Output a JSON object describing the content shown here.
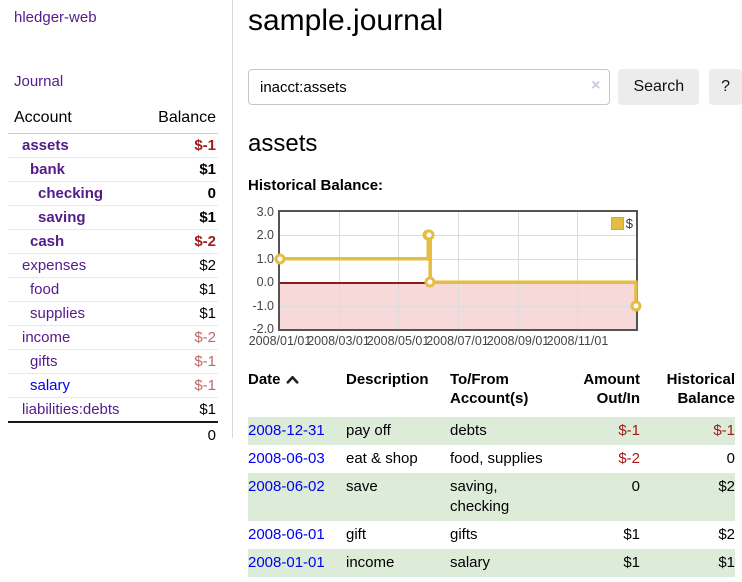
{
  "app": {
    "brand": "hledger-web"
  },
  "sidebar": {
    "nav": {
      "journal": "Journal"
    },
    "columns": {
      "account": "Account",
      "balance": "Balance"
    },
    "accounts": [
      {
        "name": "assets",
        "indent": 0,
        "bold": true,
        "link_color": "purple",
        "balance": "$-1",
        "balance_class": "neg"
      },
      {
        "name": "bank",
        "indent": 1,
        "bold": true,
        "link_color": "purple",
        "balance": "$1",
        "balance_class": "pos"
      },
      {
        "name": "checking",
        "indent": 2,
        "bold": true,
        "link_color": "purple",
        "balance": "0",
        "balance_class": "pos"
      },
      {
        "name": "saving",
        "indent": 2,
        "bold": true,
        "link_color": "purple",
        "balance": "$1",
        "balance_class": "pos"
      },
      {
        "name": "cash",
        "indent": 1,
        "bold": true,
        "link_color": "purple",
        "balance": "$-2",
        "balance_class": "neg"
      },
      {
        "name": "expenses",
        "indent": 0,
        "bold": false,
        "link_color": "purple",
        "balance": "$2",
        "balance_class": "pos"
      },
      {
        "name": "food",
        "indent": 1,
        "bold": false,
        "link_color": "purple",
        "balance": "$1",
        "balance_class": "pos"
      },
      {
        "name": "supplies",
        "indent": 1,
        "bold": false,
        "link_color": "purple",
        "balance": "$1",
        "balance_class": "pos"
      },
      {
        "name": "income",
        "indent": 0,
        "bold": false,
        "link_color": "purple",
        "balance": "$-2",
        "balance_class": "negsoft"
      },
      {
        "name": "gifts",
        "indent": 1,
        "bold": false,
        "link_color": "purple",
        "balance": "$-1",
        "balance_class": "negsoft"
      },
      {
        "name": "salary",
        "indent": 1,
        "bold": false,
        "link_color": "blue",
        "balance": "$-1",
        "balance_class": "negsoft"
      },
      {
        "name": "liabilities:debts",
        "indent": 0,
        "bold": false,
        "link_color": "purple",
        "balance": "$1",
        "balance_class": "pos"
      }
    ],
    "total": "0"
  },
  "header": {
    "title": "sample.journal"
  },
  "search": {
    "value": "inacct:assets",
    "clear_icon": "×",
    "button_label": "Search",
    "help_label": "?"
  },
  "account_page": {
    "heading": "assets",
    "chart_heading": "Historical Balance:"
  },
  "chart_data": {
    "type": "line",
    "step": true,
    "title": "Historical Balance:",
    "legend": [
      {
        "label": "$",
        "color": "#e5bd43"
      }
    ],
    "legend_position": "top-right",
    "grid": true,
    "ylim": [
      -2.0,
      3.0
    ],
    "yticks": [
      {
        "label": "3.0",
        "value": 3
      },
      {
        "label": "2.0",
        "value": 2
      },
      {
        "label": "1.0",
        "value": 1
      },
      {
        "label": "0.0",
        "value": 0
      },
      {
        "label": "-1.0",
        "value": -1
      },
      {
        "label": "-2.0",
        "value": -2
      }
    ],
    "x_axis_days_range": [
      0,
      365
    ],
    "xticks": [
      {
        "label": "2008/01/01",
        "day": 0
      },
      {
        "label": "2008/03/01",
        "day": 60
      },
      {
        "label": "2008/05/01",
        "day": 121
      },
      {
        "label": "2008/07/01",
        "day": 182
      },
      {
        "label": "2008/09/01",
        "day": 244
      },
      {
        "label": "2008/11/01",
        "day": 305
      }
    ],
    "series": [
      {
        "name": "$",
        "points": [
          {
            "date": "2008-01-01",
            "day": 0,
            "value": 1
          },
          {
            "date": "2008-06-01",
            "day": 152,
            "value": 2
          },
          {
            "date": "2008-06-02",
            "day": 153,
            "value": 2
          },
          {
            "date": "2008-06-03",
            "day": 154,
            "value": 0
          },
          {
            "date": "2008-12-31",
            "day": 365,
            "value": -1
          }
        ]
      }
    ],
    "negative_region_highlighted": true
  },
  "register": {
    "columns": [
      "Date",
      "Description",
      "To/From Account(s)",
      "Amount Out/In",
      "Historical Balance"
    ],
    "sort": {
      "column": "Date",
      "direction": "ascending"
    },
    "rows": [
      {
        "date": "2008-12-31",
        "description": "pay off",
        "accounts": "debts",
        "amount": "$-1",
        "amount_class": "neg",
        "balance": "$-1",
        "balance_class": "neg",
        "shaded": true
      },
      {
        "date": "2008-06-03",
        "description": "eat & shop",
        "accounts": "food, supplies",
        "amount": "$-2",
        "amount_class": "neg",
        "balance": "0",
        "balance_class": "pos",
        "shaded": false
      },
      {
        "date": "2008-06-02",
        "description": "save",
        "accounts": "saving, checking",
        "amount": "0",
        "amount_class": "pos",
        "balance": "$2",
        "balance_class": "pos",
        "shaded": true
      },
      {
        "date": "2008-06-01",
        "description": "gift",
        "accounts": "gifts",
        "amount": "$1",
        "amount_class": "pos",
        "balance": "$2",
        "balance_class": "pos",
        "shaded": false
      },
      {
        "date": "2008-01-01",
        "description": "income",
        "accounts": "salary",
        "amount": "$1",
        "amount_class": "pos",
        "balance": "$1",
        "balance_class": "pos",
        "shaded": true
      }
    ]
  },
  "colors": {
    "link_purple": "#551a8b",
    "link_blue": "#0000ee",
    "negative_strong": "#9e1a1a",
    "negative_soft": "#c06868",
    "row_stripe_green": "#ddecd9",
    "chart_line_gold": "#e5bd43",
    "chart_negative_fill": "#f8d9d9",
    "chart_zero_line": "#8f1a1a",
    "plot_border": "#545454"
  }
}
